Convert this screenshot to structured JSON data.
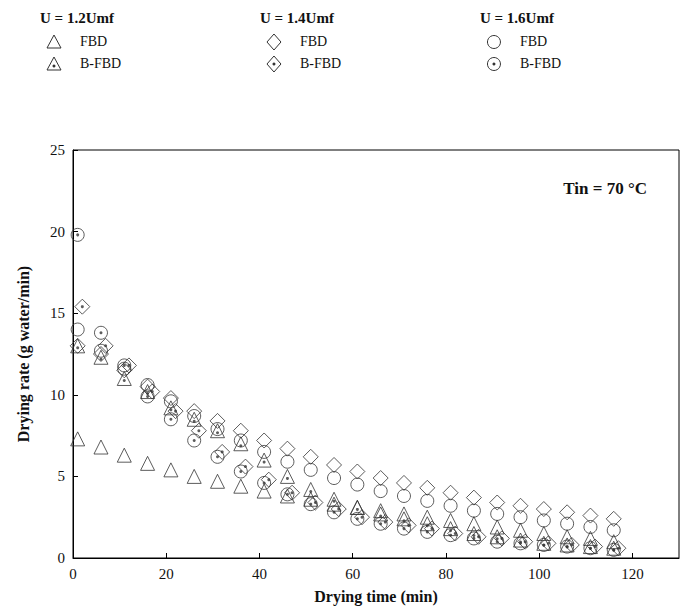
{
  "chart_data": {
    "type": "scatter",
    "x_label": "Drying time (min)",
    "y_label": "Drying rate (g water/min)",
    "annotation": "Tin = 70 °C",
    "xlim": [
      0,
      130
    ],
    "xticks": [
      0,
      20,
      40,
      60,
      80,
      100,
      120
    ],
    "ylim": [
      0,
      25
    ],
    "yticks": [
      0,
      5,
      10,
      15,
      20,
      25
    ],
    "grid": false,
    "legend": "top",
    "series": [
      {
        "name": "FBD",
        "group": "U = 1.2Umf",
        "marker": "triangle",
        "color": "#333333",
        "x": [
          1,
          6,
          11,
          16,
          21,
          26,
          31,
          36,
          41,
          46,
          51,
          56,
          61,
          66,
          71,
          76,
          81,
          86,
          91,
          96,
          101,
          106,
          111,
          116
        ],
        "values": [
          7.3,
          6.8,
          6.3,
          5.8,
          5.4,
          5.0,
          4.7,
          4.4,
          4.1,
          3.8,
          3.6,
          3.3,
          3.1,
          2.9,
          2.7,
          2.5,
          2.3,
          2.1,
          1.9,
          1.7,
          1.5,
          1.3,
          1.2,
          1.0
        ]
      },
      {
        "name": "B-FBD",
        "group": "U = 1.2Umf",
        "marker": "triangle-dot",
        "color": "#333333",
        "x": [
          1,
          6,
          11,
          16,
          21,
          26,
          31,
          36,
          41,
          46,
          51,
          56,
          61,
          66,
          71,
          76,
          81,
          86,
          91,
          96,
          101,
          106,
          111,
          116
        ],
        "values": [
          13.0,
          12.3,
          11.0,
          10.2,
          9.2,
          8.5,
          7.8,
          7.0,
          6.0,
          5.0,
          4.2,
          3.6,
          3.1,
          2.7,
          2.4,
          2.1,
          1.8,
          1.5,
          1.3,
          1.1,
          0.9,
          0.8,
          0.7,
          0.6
        ]
      },
      {
        "name": "FBD",
        "group": "U = 1.4Umf",
        "marker": "diamond",
        "color": "#333333",
        "x": [
          1,
          6,
          11,
          16,
          21,
          26,
          31,
          36,
          41,
          46,
          51,
          56,
          61,
          66,
          71,
          76,
          81,
          86,
          91,
          96,
          101,
          106,
          111,
          116
        ],
        "values": [
          13.0,
          12.5,
          11.5,
          10.5,
          9.8,
          9.0,
          8.4,
          7.8,
          7.2,
          6.7,
          6.2,
          5.7,
          5.3,
          4.9,
          4.6,
          4.3,
          4.0,
          3.7,
          3.4,
          3.2,
          3.0,
          2.8,
          2.6,
          2.4
        ]
      },
      {
        "name": "B-FBD",
        "group": "U = 1.4Umf",
        "marker": "diamond-dot",
        "color": "#333333",
        "x": [
          2,
          7,
          12,
          17,
          22,
          27,
          32,
          37,
          42,
          47,
          52,
          57,
          62,
          67,
          72,
          77,
          82,
          87,
          92,
          97,
          102,
          107,
          112,
          117
        ],
        "values": [
          15.4,
          13.0,
          11.8,
          10.2,
          9.0,
          7.8,
          6.5,
          5.6,
          4.8,
          4.0,
          3.4,
          3.0,
          2.5,
          2.2,
          2.0,
          1.8,
          1.5,
          1.3,
          1.2,
          1.0,
          0.9,
          0.8,
          0.7,
          0.6
        ]
      },
      {
        "name": "FBD",
        "group": "U = 1.6Umf",
        "marker": "circle",
        "color": "#333333",
        "x": [
          1,
          6,
          11,
          16,
          21,
          26,
          31,
          36,
          41,
          46,
          51,
          56,
          61,
          66,
          71,
          76,
          81,
          86,
          91,
          96,
          101,
          106,
          111,
          116
        ],
        "values": [
          14.0,
          12.7,
          11.6,
          10.6,
          9.6,
          8.7,
          7.9,
          7.2,
          6.5,
          5.9,
          5.4,
          4.9,
          4.5,
          4.1,
          3.8,
          3.5,
          3.2,
          2.9,
          2.7,
          2.5,
          2.3,
          2.1,
          1.9,
          1.7
        ]
      },
      {
        "name": "B-FBD",
        "group": "U = 1.6Umf",
        "marker": "circle-dot",
        "color": "#333333",
        "x": [
          1,
          6,
          11,
          16,
          21,
          26,
          31,
          36,
          41,
          46,
          51,
          56,
          61,
          66,
          71,
          76,
          81,
          86,
          91,
          96,
          101,
          106,
          111,
          116
        ],
        "values": [
          19.8,
          13.8,
          11.8,
          9.9,
          8.5,
          7.2,
          6.2,
          5.3,
          4.6,
          3.9,
          3.3,
          2.8,
          2.4,
          2.1,
          1.8,
          1.6,
          1.4,
          1.2,
          1.0,
          0.9,
          0.8,
          0.7,
          0.6,
          0.5
        ]
      }
    ]
  }
}
